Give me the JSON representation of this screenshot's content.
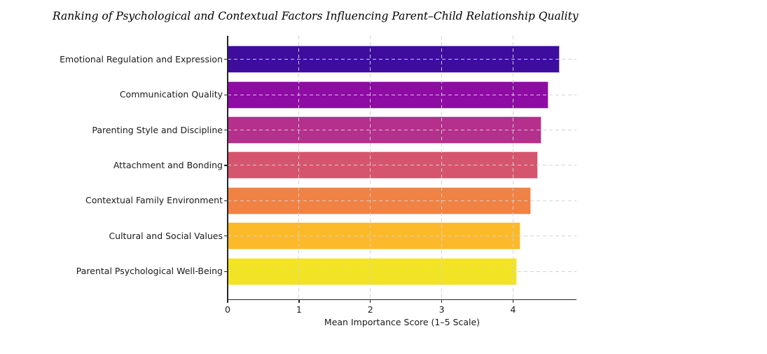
{
  "title": "Ranking of Psychological and Contextual Factors Influencing Parent–Child Relationship Quality",
  "chart_data": {
    "type": "bar",
    "orientation": "horizontal",
    "title": "Ranking of Psychological and Contextual Factors Influencing Parent–Child Relationship Quality",
    "categories": [
      "Emotional Regulation and Expression",
      "Communication Quality",
      "Parenting Style and Discipline",
      "Attachment and Bonding",
      "Contextual Family Environment",
      "Cultural and Social Values",
      "Parental Psychological Well-Being"
    ],
    "values": [
      4.65,
      4.5,
      4.4,
      4.35,
      4.25,
      4.1,
      4.05
    ],
    "bar_colors": [
      "#3e0d9e",
      "#8e0ca4",
      "#b52f8c",
      "#d6556e",
      "#f08244",
      "#fcb92a",
      "#f2e424"
    ],
    "bar_edge_color": "rgba(255,255,255,0.7)",
    "xlabel": "Mean Importance Score (1–5 Scale)",
    "ylabel": "",
    "x_ticks": [
      0,
      1,
      2,
      3,
      4
    ],
    "xlim": [
      0,
      4.89
    ],
    "grid": {
      "linestyle": "dashed",
      "axes": "both",
      "color": "#d1d1d1",
      "drawn_over_bars": true
    },
    "legend": "none",
    "axis_color": "#262626",
    "text_color": "#1a1a1a",
    "background_color": "#ffffff",
    "colormap": "plasma"
  }
}
